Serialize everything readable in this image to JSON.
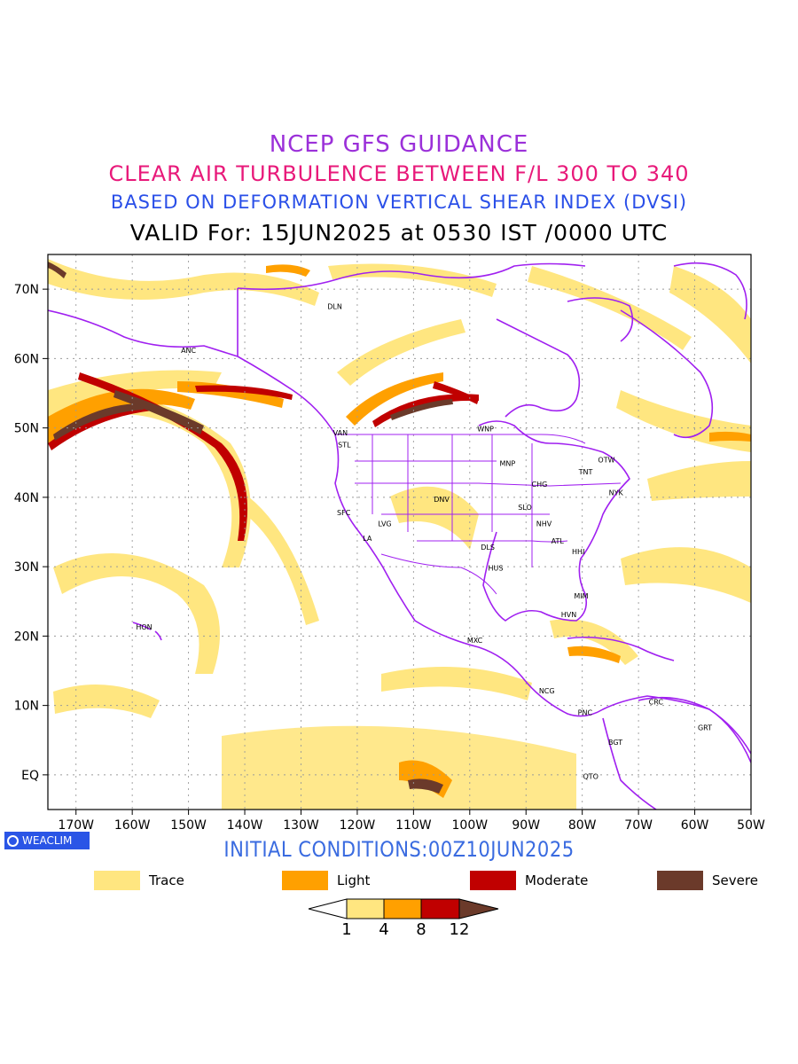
{
  "titles": {
    "line1": "NCEP GFS GUIDANCE",
    "line2": "CLEAR AIR TURBULENCE BETWEEN F/L 300 TO 340",
    "line3": "BASED ON DEFORMATION VERTICAL SHEAR INDEX (DVSI)",
    "line4": "VALID For: 15JUN2025 at 0530 IST /0000 UTC"
  },
  "map": {
    "lon_range": [
      -175,
      -50
    ],
    "lat_range": [
      -5,
      75
    ],
    "grid": true,
    "lat_ticks": [
      "70N",
      "60N",
      "50N",
      "40N",
      "30N",
      "20N",
      "10N",
      "EQ"
    ],
    "lon_ticks": [
      "170W",
      "160W",
      "150W",
      "140W",
      "130W",
      "120W",
      "110W",
      "100W",
      "90W",
      "80W",
      "70W",
      "60W",
      "50W"
    ],
    "stations": [
      {
        "name": "ANC",
        "lon": -150.0,
        "lat": 61.2
      },
      {
        "name": "DLN",
        "lon": -124.0,
        "lat": 67.5
      },
      {
        "name": "VAN",
        "lon": -123.0,
        "lat": 49.3
      },
      {
        "name": "STL",
        "lon": -122.3,
        "lat": 47.6
      },
      {
        "name": "WNP",
        "lon": -97.2,
        "lat": 49.9
      },
      {
        "name": "OTW",
        "lon": -75.7,
        "lat": 45.4
      },
      {
        "name": "TNT",
        "lon": -79.4,
        "lat": 43.7
      },
      {
        "name": "MNP",
        "lon": -93.3,
        "lat": 44.9
      },
      {
        "name": "CHG",
        "lon": -87.6,
        "lat": 41.9
      },
      {
        "name": "NYK",
        "lon": -74.0,
        "lat": 40.7
      },
      {
        "name": "DNV",
        "lon": -105.0,
        "lat": 39.7
      },
      {
        "name": "SFC",
        "lon": -122.4,
        "lat": 37.8
      },
      {
        "name": "SLO",
        "lon": -90.2,
        "lat": 38.6
      },
      {
        "name": "LVG",
        "lon": -115.1,
        "lat": 36.2
      },
      {
        "name": "NHV",
        "lon": -86.8,
        "lat": 36.2
      },
      {
        "name": "LA",
        "lon": -118.2,
        "lat": 34.1
      },
      {
        "name": "ATL",
        "lon": -84.4,
        "lat": 33.7
      },
      {
        "name": "DLS",
        "lon": -96.8,
        "lat": 32.8
      },
      {
        "name": "HHI",
        "lon": -80.7,
        "lat": 32.2
      },
      {
        "name": "HUS",
        "lon": -95.4,
        "lat": 29.8
      },
      {
        "name": "MIM",
        "lon": -80.2,
        "lat": 25.8
      },
      {
        "name": "HVN",
        "lon": -82.4,
        "lat": 23.1
      },
      {
        "name": "HON",
        "lon": -157.9,
        "lat": 21.3
      },
      {
        "name": "MXC",
        "lon": -99.1,
        "lat": 19.4
      },
      {
        "name": "NCG",
        "lon": -86.3,
        "lat": 12.1
      },
      {
        "name": "CRC",
        "lon": -66.9,
        "lat": 10.5
      },
      {
        "name": "PNC",
        "lon": -79.5,
        "lat": 9.0
      },
      {
        "name": "GRT",
        "lon": -58.2,
        "lat": 6.8
      },
      {
        "name": "BGT",
        "lon": -74.1,
        "lat": 4.7
      },
      {
        "name": "QTO",
        "lon": -78.5,
        "lat": -0.2
      }
    ]
  },
  "branding": {
    "badge_text": "WEACLIM",
    "badge_icon": "globe-icon"
  },
  "initial_conditions": "INITIAL CONDITIONS:00Z10JUN2025",
  "legend": [
    {
      "label": "Trace",
      "color": "#ffe680"
    },
    {
      "label": "Light",
      "color": "#ffa000"
    },
    {
      "label": "Moderate",
      "color": "#c00000"
    },
    {
      "label": "Severe",
      "color": "#6b3a2a"
    }
  ],
  "colorbar": {
    "levels": [
      "1",
      "4",
      "8",
      "12"
    ],
    "colors": [
      "#ffe680",
      "#ffa000",
      "#c00000",
      "#6b3a2a"
    ]
  }
}
